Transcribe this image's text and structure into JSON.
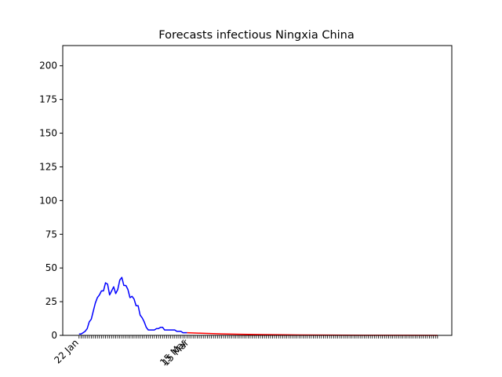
{
  "chart_data": {
    "type": "line",
    "title": "Forecasts infectious Ningxia China",
    "xlabel": "",
    "ylabel": "",
    "ylim": [
      0,
      215
    ],
    "yticks": [
      0,
      25,
      50,
      75,
      100,
      125,
      150,
      175,
      200
    ],
    "xticklabels": [
      "22 Jan",
      "15 Mar",
      "15 Mar"
    ],
    "grid": false,
    "legend": "none",
    "series": [
      {
        "color": "#0000ff",
        "x": [
          0,
          1,
          2,
          3,
          4,
          5,
          6,
          7,
          8,
          9,
          10,
          11,
          12,
          13,
          14,
          15,
          16,
          17,
          18,
          19,
          20,
          21,
          22,
          23,
          24,
          25,
          26,
          27,
          28,
          29,
          30,
          31,
          32,
          33,
          34,
          35,
          36,
          37,
          38,
          39,
          40,
          41,
          42,
          43,
          44,
          45,
          46,
          47,
          48,
          49,
          50,
          51,
          52,
          53
        ],
        "values": [
          1,
          1,
          2,
          3,
          5,
          10,
          12,
          18,
          24,
          28,
          30,
          33,
          33,
          39,
          38,
          30,
          33,
          36,
          31,
          34,
          41,
          43,
          37,
          37,
          34,
          28,
          29,
          27,
          22,
          22,
          15,
          13,
          10,
          6,
          4,
          4,
          4,
          4,
          5,
          5,
          6,
          6,
          4,
          4,
          4,
          4,
          4,
          4,
          3,
          3,
          3,
          2,
          2,
          2
        ]
      },
      {
        "color": "#ff0000",
        "x": [
          53,
          60,
          70,
          80,
          90,
          100,
          120,
          140,
          160,
          176
        ],
        "values": [
          2,
          1.6,
          1.1,
          0.8,
          0.55,
          0.4,
          0.2,
          0.1,
          0.05,
          0.02
        ]
      }
    ],
    "colors": {
      "blue": "#0000ff",
      "red": "#ff0000",
      "axis": "#000000"
    }
  }
}
